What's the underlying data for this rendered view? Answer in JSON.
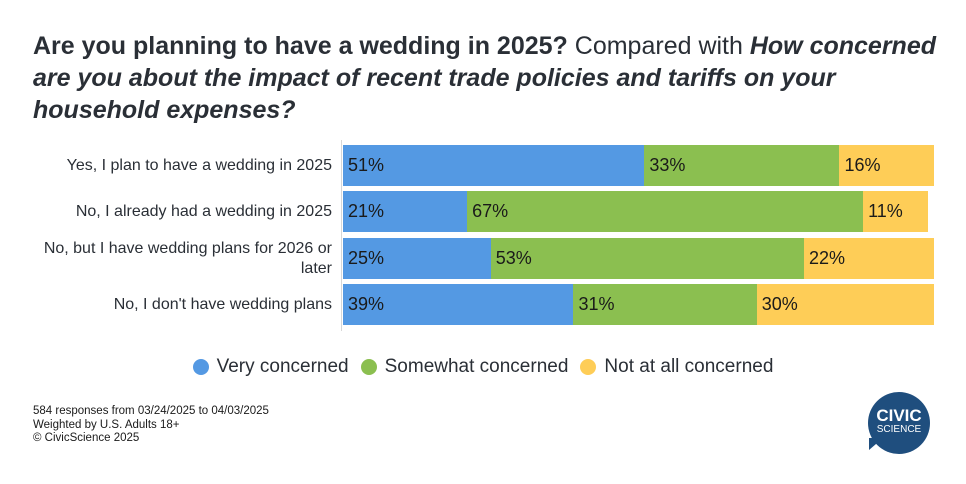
{
  "chart_data": {
    "type": "bar",
    "stacked": true,
    "orientation": "horizontal",
    "title_parts": [
      "Are you planning to have a wedding in 2025?",
      " Compared with ",
      "How concerned are you about the impact of recent trade policies and tariffs on your household expenses?"
    ],
    "categories": [
      "Yes, I plan to have a wedding in 2025",
      "No, I already had a wedding in 2025",
      "No, but I have wedding plans for 2026 or later",
      "No, I don't have wedding plans"
    ],
    "series": [
      {
        "name": "Very concerned",
        "color": "#5499e3",
        "values": [
          51,
          21,
          25,
          39
        ]
      },
      {
        "name": "Somewhat concerned",
        "color": "#8bbf50",
        "values": [
          33,
          67,
          53,
          31
        ]
      },
      {
        "name": "Not at all concerned",
        "color": "#fecd57",
        "values": [
          16,
          11,
          22,
          30
        ]
      }
    ],
    "xlim": [
      0,
      100
    ],
    "legend": "bottom"
  },
  "footer": {
    "line1": "584 responses from 03/24/2025 to 04/03/2025",
    "line2": "Weighted by U.S. Adults 18+",
    "line3": "© CivicScience 2025"
  },
  "logo": {
    "line1": "CIVIC",
    "line2": "SCIENCE"
  }
}
